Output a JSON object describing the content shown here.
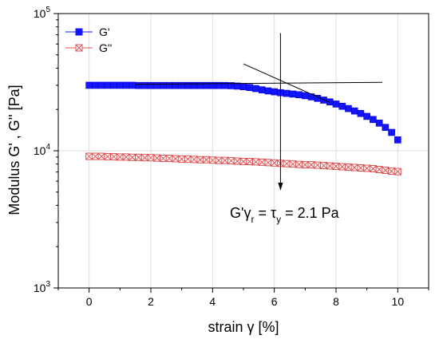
{
  "chart_data": {
    "type": "scatter",
    "xlabel": "strain γ [%]",
    "ylabel": "Modulus G' , G'' [Pa]",
    "xlim": [
      -1,
      11
    ],
    "ylim": [
      1000,
      100000
    ],
    "yscale": "log",
    "grid": true,
    "legend_position": "top-left",
    "x_ticks": [
      "0",
      "2",
      "4",
      "6",
      "8",
      "10"
    ],
    "y_ticks": [
      {
        "value": 1000,
        "base": "10",
        "exp": "3"
      },
      {
        "value": 10000,
        "base": "10",
        "exp": "4"
      },
      {
        "value": 100000,
        "base": "10",
        "exp": "5"
      }
    ],
    "series": [
      {
        "name": "G'",
        "color": "#1414ff",
        "marker": "filled-square",
        "points": [
          [
            0.0,
            30000
          ],
          [
            0.2,
            30000
          ],
          [
            0.4,
            30000
          ],
          [
            0.6,
            30000
          ],
          [
            0.8,
            30000
          ],
          [
            1.0,
            30000
          ],
          [
            1.2,
            30000
          ],
          [
            1.4,
            30000
          ],
          [
            1.6,
            29900
          ],
          [
            1.8,
            29900
          ],
          [
            2.0,
            29900
          ],
          [
            2.2,
            29900
          ],
          [
            2.4,
            29900
          ],
          [
            2.6,
            29900
          ],
          [
            2.8,
            29900
          ],
          [
            3.0,
            29900
          ],
          [
            3.2,
            29900
          ],
          [
            3.4,
            29900
          ],
          [
            3.6,
            29900
          ],
          [
            3.8,
            29900
          ],
          [
            4.0,
            29900
          ],
          [
            4.2,
            29900
          ],
          [
            4.4,
            29900
          ],
          [
            4.6,
            29800
          ],
          [
            4.8,
            29600
          ],
          [
            5.0,
            29300
          ],
          [
            5.2,
            28900
          ],
          [
            5.4,
            28400
          ],
          [
            5.6,
            27800
          ],
          [
            5.8,
            27300
          ],
          [
            6.0,
            26900
          ],
          [
            6.2,
            26500
          ],
          [
            6.4,
            26200
          ],
          [
            6.6,
            25900
          ],
          [
            6.8,
            25600
          ],
          [
            7.0,
            25200
          ],
          [
            7.2,
            24700
          ],
          [
            7.4,
            24100
          ],
          [
            7.6,
            23400
          ],
          [
            7.8,
            22700
          ],
          [
            8.0,
            21900
          ],
          [
            8.2,
            21100
          ],
          [
            8.4,
            20300
          ],
          [
            8.6,
            19500
          ],
          [
            8.8,
            18700
          ],
          [
            9.0,
            17800
          ],
          [
            9.2,
            16900
          ],
          [
            9.4,
            15900
          ],
          [
            9.6,
            14800
          ],
          [
            9.8,
            13600
          ],
          [
            10.0,
            12000
          ]
        ]
      },
      {
        "name": "G''",
        "color": "#e05050",
        "marker": "crossed-square",
        "points": [
          [
            0.0,
            9100
          ],
          [
            0.2,
            9100
          ],
          [
            0.4,
            9100
          ],
          [
            0.6,
            9050
          ],
          [
            0.8,
            9050
          ],
          [
            1.0,
            9000
          ],
          [
            1.2,
            9000
          ],
          [
            1.4,
            8950
          ],
          [
            1.6,
            8950
          ],
          [
            1.8,
            8900
          ],
          [
            2.0,
            8900
          ],
          [
            2.2,
            8850
          ],
          [
            2.4,
            8800
          ],
          [
            2.6,
            8800
          ],
          [
            2.8,
            8750
          ],
          [
            3.0,
            8700
          ],
          [
            3.2,
            8700
          ],
          [
            3.4,
            8650
          ],
          [
            3.6,
            8600
          ],
          [
            3.8,
            8600
          ],
          [
            4.0,
            8550
          ],
          [
            4.2,
            8500
          ],
          [
            4.4,
            8500
          ],
          [
            4.6,
            8450
          ],
          [
            4.8,
            8400
          ],
          [
            5.0,
            8350
          ],
          [
            5.2,
            8350
          ],
          [
            5.4,
            8300
          ],
          [
            5.6,
            8250
          ],
          [
            5.8,
            8200
          ],
          [
            6.0,
            8150
          ],
          [
            6.2,
            8100
          ],
          [
            6.4,
            8050
          ],
          [
            6.6,
            8000
          ],
          [
            6.8,
            7950
          ],
          [
            7.0,
            7900
          ],
          [
            7.2,
            7900
          ],
          [
            7.4,
            7850
          ],
          [
            7.6,
            7800
          ],
          [
            7.8,
            7750
          ],
          [
            8.0,
            7700
          ],
          [
            8.2,
            7650
          ],
          [
            8.4,
            7600
          ],
          [
            8.6,
            7550
          ],
          [
            8.8,
            7500
          ],
          [
            9.0,
            7450
          ],
          [
            9.2,
            7400
          ],
          [
            9.4,
            7300
          ],
          [
            9.6,
            7200
          ],
          [
            9.8,
            7100
          ],
          [
            10.0,
            7050
          ]
        ]
      }
    ],
    "annotation_lines": [
      {
        "from": [
          1.5,
          30500
        ],
        "to": [
          9.5,
          31500
        ]
      },
      {
        "from": [
          5.0,
          43000
        ],
        "to": [
          7.8,
          22500
        ]
      },
      {
        "from": [
          6.2,
          72000
        ],
        "to": [
          6.2,
          5400
        ],
        "arrow": true
      }
    ],
    "annotation": {
      "text_main": "G'",
      "sub1": "r",
      "text_mid": " = τ",
      "sub2": "y",
      "text_end": " = 2.1 Pa",
      "greek_gamma": "γ",
      "anchor": [
        4.5,
        3600
      ]
    }
  }
}
